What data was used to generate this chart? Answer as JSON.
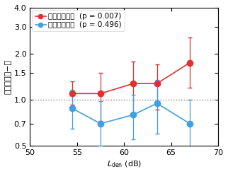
{
  "red_x": [
    54.5,
    57.5,
    61.0,
    63.5,
    67.0
  ],
  "red_y": [
    1.1,
    1.1,
    1.28,
    1.28,
    1.75
  ],
  "red_yerr_low": [
    0.17,
    0.37,
    0.47,
    0.42,
    0.55
  ],
  "red_yerr_high": [
    0.22,
    0.4,
    0.5,
    0.42,
    0.8
  ],
  "blue_x": [
    54.5,
    57.5,
    61.0,
    63.5,
    67.0
  ],
  "blue_y": [
    0.88,
    0.7,
    0.8,
    0.95,
    0.7
  ],
  "blue_yerr_low": [
    0.23,
    0.2,
    0.25,
    0.35,
    0.23
  ],
  "blue_yerr_high": [
    0.28,
    0.28,
    0.28,
    0.4,
    0.3
  ],
  "red_color": "#e03030",
  "blue_color": "#40a0e0",
  "ref_line_y": 1.0,
  "ref_line_color": "#888888",
  "xlim": [
    50,
    70
  ],
  "ylim": [
    0.5,
    4.0
  ],
  "yticks": [
    0.5,
    0.7,
    1.0,
    1.5,
    2.0,
    3.0,
    4.0
  ],
  "ytick_labels": [
    "0.5",
    "0.7",
    "1.0",
    "1.5",
    "2.0",
    "3.0",
    "4.0"
  ],
  "xticks": [
    50,
    55,
    60,
    65,
    70
  ],
  "xtick_labels": [
    "50",
    "55",
    "60",
    "65",
    "70"
  ],
  "ylabel": "オッズ比（−）",
  "legend_red": "：高感受性群",
  "legend_blue": "：低感受性群",
  "legend_red_p": "  (p = 0.007)",
  "legend_blue_p": "  (p = 0.496)",
  "axis_fontsize": 8,
  "legend_fontsize": 7.5,
  "marker_size": 6,
  "linewidth": 1.2,
  "bg_color": "#ffffff"
}
